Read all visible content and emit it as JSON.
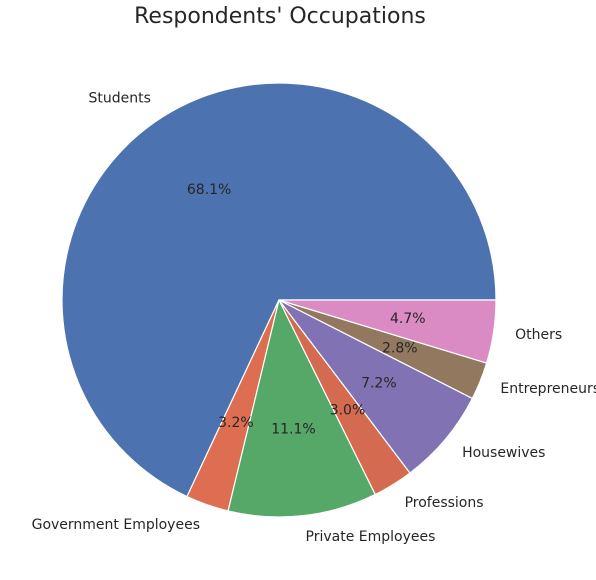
{
  "chart_data": {
    "type": "pie",
    "title": "Respondents' Occupations",
    "slices": [
      {
        "label": "Students",
        "value": 68.1,
        "pct_label": "68.1%",
        "color": "#4c72b0"
      },
      {
        "label": "Government Employees",
        "value": 3.2,
        "pct_label": "3.2%",
        "color": "#dd6e52"
      },
      {
        "label": "Private Employees",
        "value": 11.1,
        "pct_label": "11.1%",
        "color": "#55a868"
      },
      {
        "label": "Professions",
        "value": 3.0,
        "pct_label": "3.0%",
        "color": "#d46a50"
      },
      {
        "label": "Housewives",
        "value": 7.2,
        "pct_label": "7.2%",
        "color": "#8172b3"
      },
      {
        "label": "Entrepreneurs",
        "value": 2.8,
        "pct_label": "2.8%",
        "color": "#937860"
      },
      {
        "label": "Others",
        "value": 4.7,
        "pct_label": "4.7%",
        "color": "#da8bc3"
      }
    ],
    "start_angle_deg": 0,
    "direction": "counterclockwise",
    "legend": "none"
  }
}
